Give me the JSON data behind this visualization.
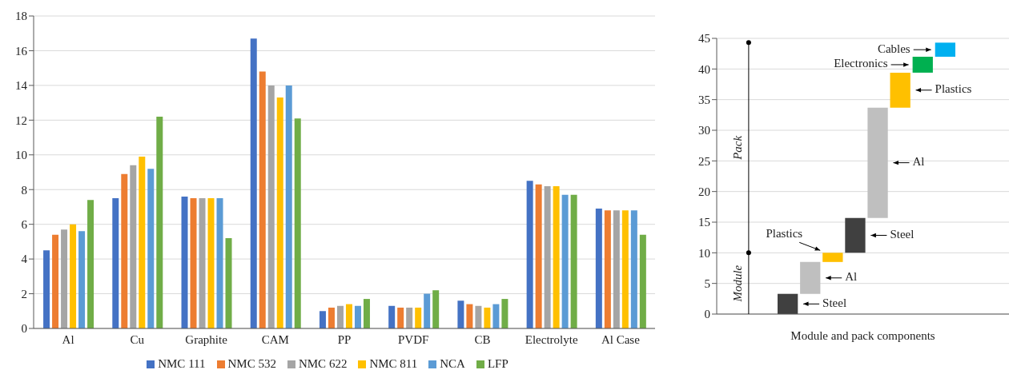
{
  "chart_data": [
    {
      "type": "bar",
      "categories": [
        "Al",
        "Cu",
        "Graphite",
        "CAM",
        "PP",
        "PVDF",
        "CB",
        "Electrolyte",
        "Al Case"
      ],
      "series": [
        {
          "name": "NMC 111",
          "color": "#4472c4",
          "values": [
            4.5,
            7.5,
            7.6,
            16.7,
            1.0,
            1.3,
            1.6,
            8.5,
            6.9
          ]
        },
        {
          "name": "NMC 532",
          "color": "#ed7d31",
          "values": [
            5.4,
            8.9,
            7.5,
            14.8,
            1.2,
            1.2,
            1.4,
            8.3,
            6.8
          ]
        },
        {
          "name": "NMC 622",
          "color": "#a5a5a5",
          "values": [
            5.7,
            9.4,
            7.5,
            14.0,
            1.3,
            1.2,
            1.3,
            8.2,
            6.8
          ]
        },
        {
          "name": "NMC 811",
          "color": "#ffc000",
          "values": [
            6.0,
            9.9,
            7.5,
            13.3,
            1.4,
            1.2,
            1.2,
            8.2,
            6.8
          ]
        },
        {
          "name": "NCA",
          "color": "#5b9bd5",
          "values": [
            5.6,
            9.2,
            7.5,
            14.0,
            1.3,
            2.0,
            1.4,
            7.7,
            6.8
          ]
        },
        {
          "name": "LFP",
          "color": "#70ad47",
          "values": [
            7.4,
            12.2,
            5.2,
            12.1,
            1.7,
            2.2,
            1.7,
            7.7,
            5.4
          ]
        }
      ],
      "ylim": [
        0,
        18
      ],
      "yticks": [
        0,
        2,
        4,
        6,
        8,
        10,
        12,
        14,
        16,
        18
      ],
      "grid": "y",
      "legend": "bottom"
    },
    {
      "type": "bar",
      "categories": [
        null,
        null,
        null,
        null,
        null,
        null,
        null,
        null
      ],
      "values": [
        3.3,
        5.2,
        1.5,
        5.7,
        18,
        5.7,
        2.6,
        2.3
      ],
      "base": [
        0,
        3.3,
        8.5,
        10,
        15.7,
        33.7,
        39.4,
        42
      ],
      "colors": [
        "#404040",
        "#bfbfbf",
        "#ffc000",
        "#404040",
        "#bfbfbf",
        "#ffc000",
        "#00b050",
        "#00b0f0"
      ],
      "ylim": [
        0,
        45
      ],
      "yticks": [
        0,
        5,
        10,
        15,
        20,
        25,
        30,
        35,
        40,
        45
      ],
      "grid": "y",
      "xlabel": "Module and pack components",
      "annotations": [
        "Steel",
        "Al",
        "Plastics",
        "Steel",
        "Al",
        "Plastics",
        "Electronics",
        "Cables",
        "Module",
        "Pack"
      ]
    }
  ]
}
